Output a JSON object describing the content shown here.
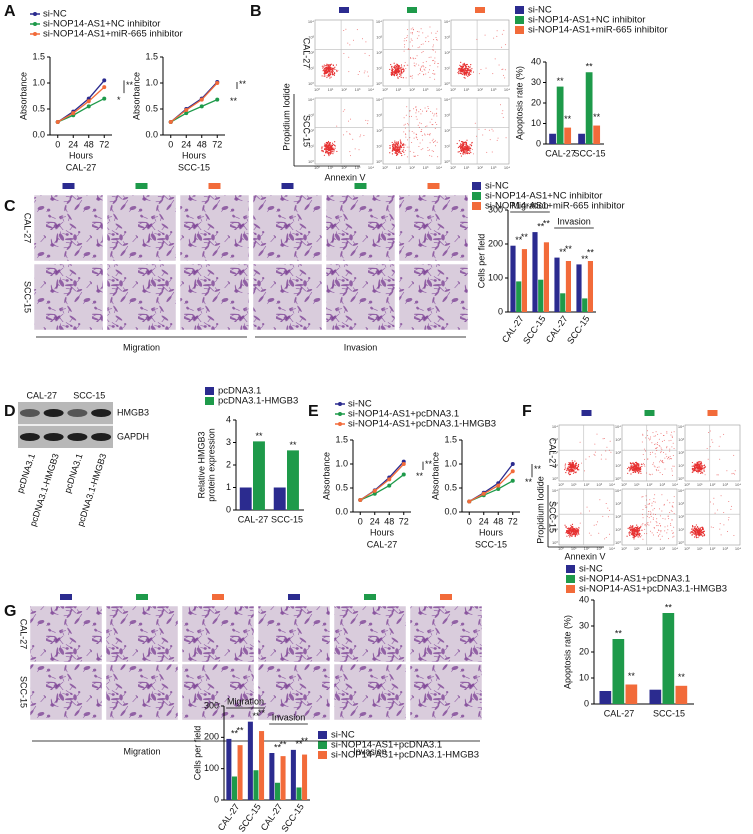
{
  "panels": [
    {
      "letter": "A",
      "legend": [
        {
          "name": "si-NC",
          "color": "#2b2b8f"
        },
        {
          "name": "si-NOP14-AS1+NC inhibitor",
          "color": "#1e9a4a"
        },
        {
          "name": "si-NOP14-AS1+miR-665 inhibitor",
          "color": "#f26b3a"
        }
      ],
      "charts": [
        {
          "type": "line",
          "title": "CAL-27",
          "xlabel": "Hours",
          "ylabel": "Absorbance",
          "x": [
            0,
            24,
            48,
            72
          ],
          "xticks": [
            0,
            24,
            48,
            72
          ],
          "xlim": [
            -12,
            84
          ],
          "ylim": [
            0,
            1.5
          ],
          "yticks": [
            {
              "value": 0,
              "label": "0.0"
            },
            0.5,
            {
              "value": 1,
              "label": "1.0"
            },
            1.5
          ],
          "series": [
            {
              "values": [
                0.25,
                0.45,
                0.7,
                1.05
              ]
            },
            {
              "values": [
                0.25,
                0.38,
                0.55,
                0.7
              ]
            },
            {
              "values": [
                0.25,
                0.42,
                0.65,
                0.92
              ]
            }
          ],
          "annotations": [
            "*",
            "**"
          ]
        },
        {
          "type": "line",
          "title": "SCC-15",
          "xlabel": "Hours",
          "ylabel": "Absorbance",
          "x": [
            0,
            24,
            48,
            72
          ],
          "xticks": [
            0,
            24,
            48,
            72
          ],
          "xlim": [
            -12,
            84
          ],
          "ylim": [
            0,
            1.5
          ],
          "yticks": [
            {
              "value": 0,
              "label": "0.0"
            },
            0.5,
            {
              "value": 1,
              "label": "1.0"
            },
            1.5
          ],
          "series": [
            {
              "values": [
                0.25,
                0.5,
                0.7,
                1.02
              ]
            },
            {
              "values": [
                0.25,
                0.42,
                0.55,
                0.68
              ]
            },
            {
              "values": [
                0.25,
                0.48,
                0.68,
                1.0
              ]
            }
          ],
          "annotations": [
            "**",
            "**"
          ]
        }
      ]
    },
    {
      "letter": "B",
      "legend": [
        {
          "name": "si-NC",
          "color": "#2b2b8f"
        },
        {
          "name": "si-NOP14-AS1+NC inhibitor",
          "color": "#1e9a4a"
        },
        {
          "name": "si-NOP14-AS1+miR-665 inhibitor",
          "color": "#f26b3a"
        }
      ],
      "flow": {
        "rows": [
          "CAL-27",
          "SCC-15"
        ],
        "ylabel": "Propidium Iodide",
        "xlabel": "Annexin V",
        "ticks": [
          "10⁰",
          "10¹",
          "10²",
          "10³",
          "10⁴"
        ]
      },
      "charts": [
        {
          "type": "bar",
          "ylabel": "Apoptosis rate (%)",
          "categories": [
            "CAL-27",
            "SCC-15"
          ],
          "ylim": [
            0,
            40
          ],
          "yticks": [
            0,
            10,
            20,
            30,
            40
          ],
          "series": [
            {
              "values": [
                5,
                5
              ]
            },
            {
              "values": [
                28,
                35
              ]
            },
            {
              "values": [
                8,
                9
              ]
            }
          ],
          "annotations": [
            "**",
            "**",
            "**",
            "**"
          ]
        }
      ]
    },
    {
      "letter": "C",
      "legend": [
        {
          "name": "si-NC",
          "color": "#2b2b8f"
        },
        {
          "name": "si-NOP14-AS1+NC inhibitor",
          "color": "#1e9a4a"
        },
        {
          "name": "si-NOP14-AS1+miR-665 inhibitor",
          "color": "#f26b3a"
        }
      ],
      "micro": {
        "rows": [
          "CAL-27",
          "SCC-15"
        ],
        "groups": [
          "Migration",
          "Invasion"
        ]
      },
      "charts": [
        {
          "type": "bar",
          "ylabel": "Cells per field",
          "categories": [
            "CAL-27",
            "SCC-15",
            "CAL-27",
            "SCC-15"
          ],
          "groups": [
            "Migration",
            "Invasion"
          ],
          "ylim": [
            0,
            300
          ],
          "yticks": [
            0,
            100,
            200,
            300
          ],
          "series": [
            {
              "values": [
                195,
                235,
                160,
                140
              ]
            },
            {
              "values": [
                90,
                95,
                55,
                40
              ]
            },
            {
              "values": [
                185,
                205,
                150,
                150
              ]
            }
          ],
          "annotations": [
            "**",
            "**",
            "**",
            "**",
            "**",
            "**",
            "**",
            "**"
          ]
        }
      ]
    },
    {
      "letter": "D",
      "legend": [
        {
          "name": "pcDNA3.1",
          "color": "#2b2b8f"
        },
        {
          "name": "pcDNA3.1-HMGB3",
          "color": "#1e9a4a"
        }
      ],
      "blot": {
        "cells": [
          "CAL-27",
          "SCC-15"
        ],
        "bands": [
          "HMGB3",
          "GAPDH"
        ],
        "lanes": [
          "pcDNA3.1",
          "pcDNA3.1-HMGB3",
          "pcDNA3.1",
          "pcDNA3.1-HMGB3"
        ]
      },
      "charts": [
        {
          "type": "bar",
          "ylabel": [
            "Relative HMGB3",
            "protein expression"
          ],
          "categories": [
            "CAL-27",
            "SCC-15"
          ],
          "ylim": [
            0,
            4
          ],
          "yticks": [
            0,
            1,
            2,
            3,
            4
          ],
          "series": [
            {
              "values": [
                1,
                1
              ]
            },
            {
              "values": [
                3.05,
                2.65
              ]
            }
          ],
          "annotations": [
            "**",
            "**"
          ]
        }
      ]
    },
    {
      "letter": "E",
      "legend": [
        {
          "name": "si-NC",
          "color": "#2b2b8f"
        },
        {
          "name": "si-NOP14-AS1+pcDNA3.1",
          "color": "#1e9a4a"
        },
        {
          "name": "si-NOP14-AS1+pcDNA3.1-HMGB3",
          "color": "#f26b3a"
        }
      ],
      "charts": [
        {
          "type": "line",
          "title": "CAL-27",
          "xlabel": "Hours",
          "ylabel": "Absorbance",
          "x": [
            0,
            24,
            48,
            72
          ],
          "xticks": [
            0,
            24,
            48,
            72
          ],
          "xlim": [
            -12,
            84
          ],
          "ylim": [
            0,
            1.5
          ],
          "yticks": [
            {
              "value": 0,
              "label": "0.0"
            },
            0.5,
            {
              "value": 1,
              "label": "1.0"
            },
            1.5
          ],
          "series": [
            {
              "values": [
                0.25,
                0.45,
                0.72,
                1.05
              ]
            },
            {
              "values": [
                0.25,
                0.38,
                0.55,
                0.78
              ]
            },
            {
              "values": [
                0.25,
                0.44,
                0.68,
                1.0
              ]
            }
          ],
          "annotations": [
            "**",
            "**"
          ]
        },
        {
          "type": "line",
          "title": "SCC-15",
          "xlabel": "Hours",
          "ylabel": "Absorbance",
          "x": [
            0,
            24,
            48,
            72
          ],
          "xticks": [
            0,
            24,
            48,
            72
          ],
          "xlim": [
            -12,
            84
          ],
          "ylim": [
            0,
            1.5
          ],
          "yticks": [
            {
              "value": 0,
              "label": "0.0"
            },
            0.5,
            {
              "value": 1,
              "label": "1.0"
            },
            1.5
          ],
          "series": [
            {
              "values": [
                0.22,
                0.4,
                0.6,
                1.0
              ]
            },
            {
              "values": [
                0.22,
                0.35,
                0.48,
                0.65
              ]
            },
            {
              "values": [
                0.22,
                0.38,
                0.55,
                0.85
              ]
            }
          ],
          "annotations": [
            "**",
            "**"
          ]
        }
      ]
    },
    {
      "letter": "F",
      "legend": [
        {
          "name": "si-NC",
          "color": "#2b2b8f"
        },
        {
          "name": "si-NOP14-AS1+pcDNA3.1",
          "color": "#1e9a4a"
        },
        {
          "name": "si-NOP14-AS1+pcDNA3.1-HMGB3",
          "color": "#f26b3a"
        }
      ],
      "flow": {
        "rows": [
          "CAL-27",
          "SCC-15"
        ],
        "ylabel": "Propidium Iodide",
        "xlabel": "Annexin V",
        "ticks": [
          "10⁰",
          "10¹",
          "10²",
          "10³",
          "10⁴"
        ]
      },
      "charts": [
        {
          "type": "bar",
          "ylabel": "Apoptosis rate (%)",
          "categories": [
            "CAL-27",
            "SCC-15"
          ],
          "ylim": [
            0,
            40
          ],
          "yticks": [
            0,
            10,
            20,
            30,
            40
          ],
          "series": [
            {
              "values": [
                5,
                5.5
              ]
            },
            {
              "values": [
                25,
                35
              ]
            },
            {
              "values": [
                7.5,
                7
              ]
            }
          ],
          "annotations": [
            "**",
            "**",
            "**",
            "**"
          ]
        }
      ]
    },
    {
      "letter": "G",
      "legend": [
        {
          "name": "si-NC",
          "color": "#2b2b8f"
        },
        {
          "name": "si-NOP14-AS1+pcDNA3.1",
          "color": "#1e9a4a"
        },
        {
          "name": "si-NOP14-AS1+pcDNA3.1-HMGB3",
          "color": "#f26b3a"
        }
      ],
      "micro": {
        "rows": [
          "CAL-27",
          "SCC-15"
        ],
        "groups": [
          "Migration",
          "Invasion"
        ]
      },
      "charts": [
        {
          "type": "bar",
          "ylabel": "Cells per field",
          "categories": [
            "CAL-27",
            "SCC-15",
            "CAL-27",
            "SCC-15"
          ],
          "groups": [
            "Migration",
            "Invasion"
          ],
          "ylim": [
            0,
            300
          ],
          "yticks": [
            0,
            100,
            200,
            300
          ],
          "series": [
            {
              "values": [
                195,
                250,
                150,
                160
              ]
            },
            {
              "values": [
                75,
                95,
                55,
                40
              ]
            },
            {
              "values": [
                175,
                220,
                140,
                145
              ]
            }
          ],
          "annotations": [
            "**",
            "**",
            "**",
            "**",
            "**",
            "**",
            "**",
            "**"
          ]
        }
      ]
    }
  ]
}
